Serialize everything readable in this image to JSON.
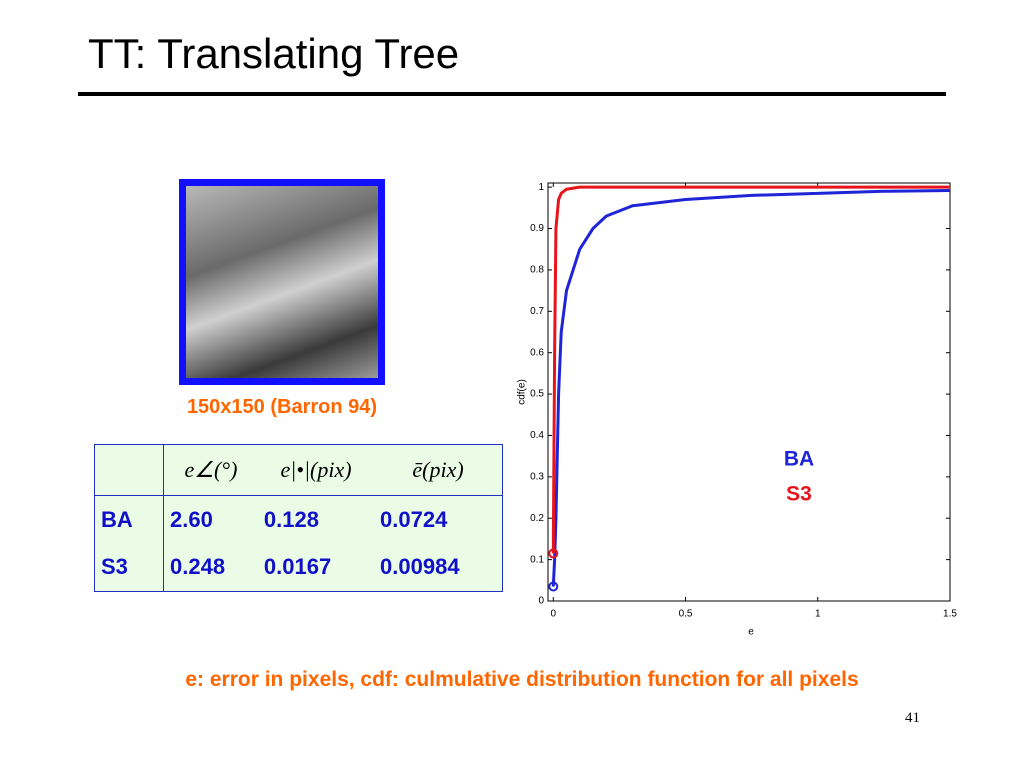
{
  "header": {
    "title": "TT: Translating Tree"
  },
  "image_caption": "150x150 (Barron 94)",
  "table": {
    "header": [
      "",
      "e∠(°)",
      "e|•|(pix)",
      "ē(pix)"
    ],
    "rows": [
      [
        "BA",
        "2.60",
        "0.128",
        "0.0724"
      ],
      [
        "S3",
        "0.248",
        "0.0167",
        "0.00984"
      ]
    ]
  },
  "chart_data": {
    "type": "line",
    "xlabel": "e",
    "ylabel": "cdf(e)",
    "x": [
      0,
      0.005,
      0.01,
      0.02,
      0.03,
      0.05,
      0.1,
      0.15,
      0.2,
      0.3,
      0.5,
      0.75,
      1,
      1.25,
      1.5
    ],
    "series": [
      {
        "name": "BA",
        "color": "#1f24d6",
        "values": [
          0.035,
          0.1,
          0.2,
          0.5,
          0.65,
          0.75,
          0.85,
          0.9,
          0.93,
          0.955,
          0.97,
          0.98,
          0.985,
          0.99,
          0.992
        ]
      },
      {
        "name": "S3",
        "color": "#e8141c",
        "values": [
          0.115,
          0.6,
          0.9,
          0.97,
          0.985,
          0.995,
          1,
          1,
          1,
          1,
          1,
          1,
          1,
          1,
          1
        ]
      }
    ],
    "xlim": [
      -0.02,
      1.5
    ],
    "ylim": [
      0,
      1.01
    ],
    "xticks": [
      0,
      0.5,
      1,
      1.5
    ],
    "yticks": [
      0,
      0.1,
      0.2,
      0.3,
      0.4,
      0.5,
      0.6,
      0.7,
      0.8,
      0.9,
      1
    ]
  },
  "footnote": "e: error in pixels, cdf: culmulative distribution function for all pixels",
  "page_number": "41"
}
